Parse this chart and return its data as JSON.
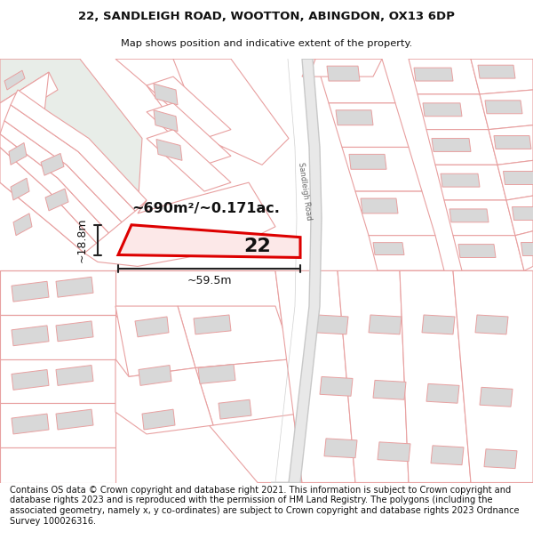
{
  "title_line1": "22, SANDLEIGH ROAD, WOOTTON, ABINGDON, OX13 6DP",
  "title_line2": "Map shows position and indicative extent of the property.",
  "footer_text": "Contains OS data © Crown copyright and database right 2021. This information is subject to Crown copyright and database rights 2023 and is reproduced with the permission of HM Land Registry. The polygons (including the associated geometry, namely x, y co-ordinates) are subject to Crown copyright and database rights 2023 Ordnance Survey 100026316.",
  "area_label": "~690m²/~0.171ac.",
  "plot_number": "22",
  "dim_width": "~59.5m",
  "dim_height": "~18.8m",
  "road_label": "Sandleigh Road",
  "map_bg": "#f7f7f7",
  "plot_fill": "#fce8e8",
  "plot_edge": "#dd0000",
  "line_color": "#e8a0a0",
  "green_area": "#e8ede8",
  "building_fill": "#d8d8d8",
  "road_fill": "#e0e0e0",
  "road_edge": "#c8c8c8"
}
